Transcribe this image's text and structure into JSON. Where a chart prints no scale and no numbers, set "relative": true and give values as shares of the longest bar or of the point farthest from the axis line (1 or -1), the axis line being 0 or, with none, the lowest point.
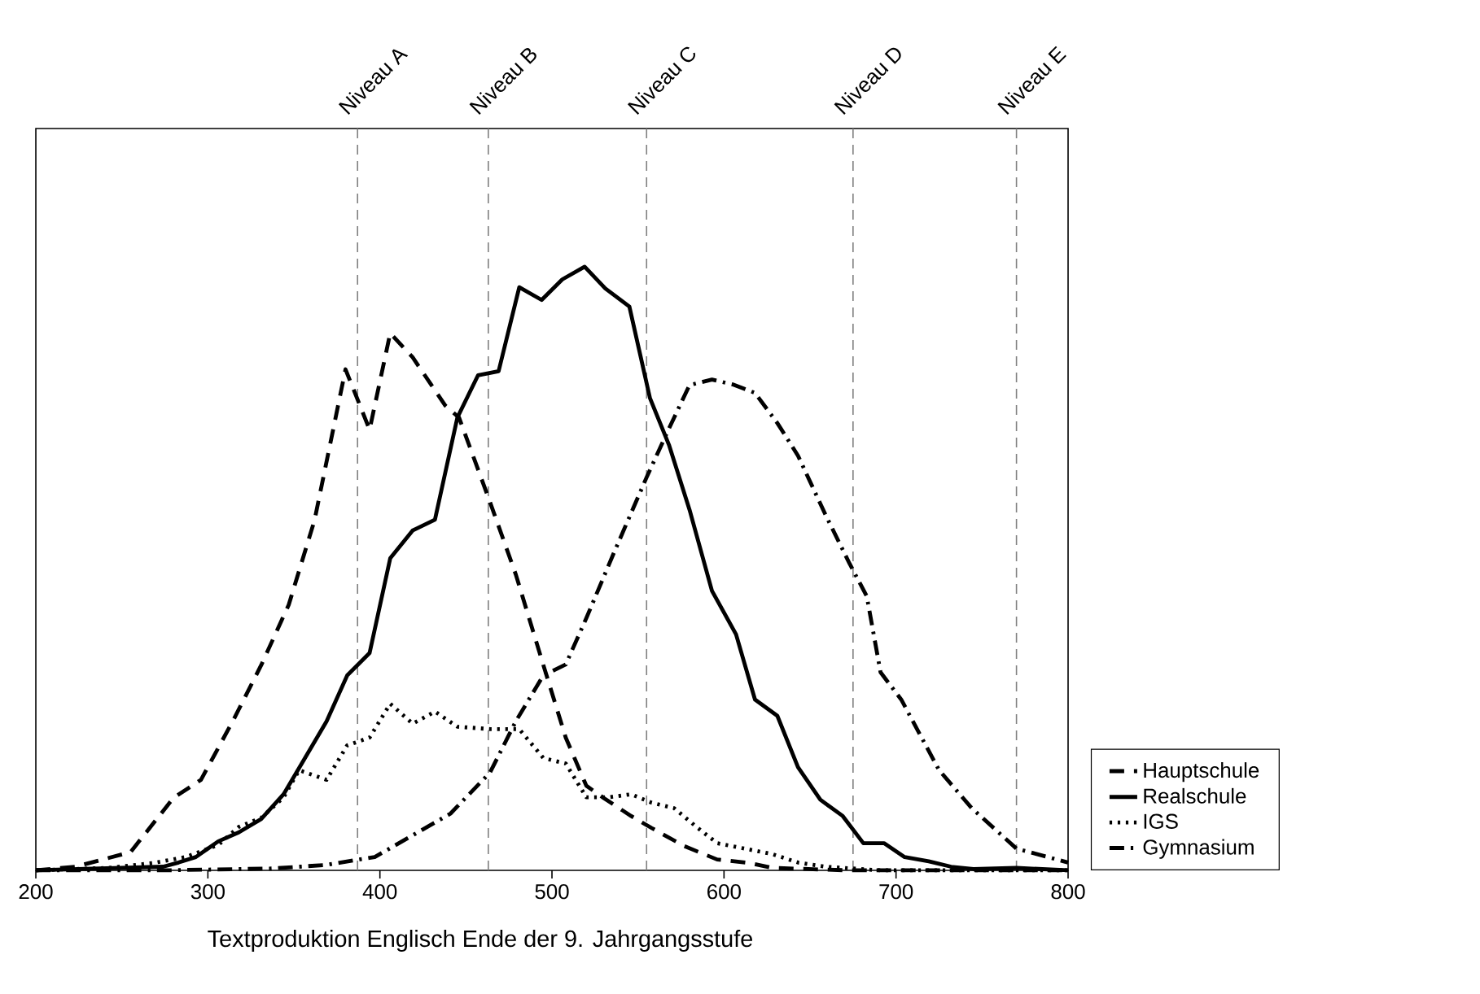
{
  "chart_data": {
    "type": "line",
    "relative": true,
    "xlabel": "Textproduktion Englisch Ende der 9. Jahrgangsstufe",
    "xlim": [
      200,
      800
    ],
    "xticks": [
      200,
      300,
      400,
      500,
      600,
      700,
      800
    ],
    "tick_labels": "x",
    "legend": "right",
    "grid": false,
    "ref_lines": [
      {
        "axis": "x",
        "value": 387,
        "label": "Niveau A",
        "color": "#808080",
        "line_style": "dashed"
      },
      {
        "axis": "x",
        "value": 463,
        "label": "Niveau B",
        "color": "#808080",
        "line_style": "dashed"
      },
      {
        "axis": "x",
        "value": 555,
        "label": "Niveau C",
        "color": "#808080",
        "line_style": "dashed"
      },
      {
        "axis": "x",
        "value": 675,
        "label": "Niveau D",
        "color": "#808080",
        "line_style": "dashed"
      },
      {
        "axis": "x",
        "value": 770,
        "label": "Niveau E",
        "color": "#808080",
        "line_style": "dashed"
      }
    ],
    "series": [
      {
        "name": "Hauptschule",
        "color": "#000000",
        "line_style": "dashed",
        "x": [
          200,
          223,
          255,
          280,
          296,
          315,
          331,
          347,
          362,
          380,
          394,
          406,
          419,
          438,
          446,
          464,
          479,
          495,
          508,
          520,
          530,
          546,
          558,
          577,
          596,
          615,
          628,
          672,
          800
        ],
        "values": [
          0,
          0.006,
          0.03,
          0.12,
          0.15,
          0.25,
          0.34,
          0.44,
          0.58,
          0.83,
          0.73,
          0.89,
          0.85,
          0.77,
          0.75,
          0.61,
          0.49,
          0.34,
          0.22,
          0.14,
          0.12,
          0.09,
          0.07,
          0.04,
          0.018,
          0.012,
          0.004,
          0,
          0
        ]
      },
      {
        "name": "Realschule",
        "color": "#000000",
        "line_style": "solid",
        "x": [
          200,
          274,
          283,
          293,
          306,
          318,
          331,
          344,
          356,
          369,
          381,
          394,
          406,
          419,
          432,
          445,
          457,
          469,
          481,
          494,
          506,
          519,
          531,
          545,
          557,
          568,
          580,
          593,
          607,
          618,
          631,
          643,
          656,
          669,
          681,
          693,
          705,
          719,
          732,
          745,
          770,
          800
        ],
        "values": [
          0,
          0.006,
          0.013,
          0.022,
          0.048,
          0.063,
          0.085,
          0.126,
          0.184,
          0.247,
          0.323,
          0.36,
          0.517,
          0.563,
          0.581,
          0.75,
          0.82,
          0.827,
          0.966,
          0.945,
          0.979,
          1,
          0.964,
          0.934,
          0.782,
          0.705,
          0.597,
          0.463,
          0.391,
          0.283,
          0.256,
          0.171,
          0.117,
          0.09,
          0.045,
          0.045,
          0.022,
          0.015,
          0.006,
          0.002,
          0.004,
          0
        ]
      },
      {
        "name": "IGS",
        "color": "#000000",
        "line_style": "dotted",
        "x": [
          200,
          242,
          268,
          287,
          306,
          318,
          331,
          344,
          353,
          369,
          381,
          394,
          406,
          419,
          432,
          445,
          464,
          481,
          495,
          508,
          520,
          533,
          546,
          558,
          571,
          584,
          596,
          612,
          628,
          643,
          659,
          675,
          691,
          800
        ],
        "values": [
          0,
          0.004,
          0.012,
          0.022,
          0.042,
          0.072,
          0.087,
          0.121,
          0.166,
          0.15,
          0.207,
          0.22,
          0.276,
          0.243,
          0.263,
          0.238,
          0.234,
          0.234,
          0.186,
          0.177,
          0.121,
          0.121,
          0.126,
          0.112,
          0.103,
          0.072,
          0.045,
          0.036,
          0.027,
          0.013,
          0.006,
          0.003,
          0,
          0
        ]
      },
      {
        "name": "Gymnasium",
        "color": "#000000",
        "line_style": "dashdot",
        "x": [
          200,
          274,
          337,
          369,
          388,
          397,
          419,
          441,
          464,
          479,
          495,
          508,
          520,
          536,
          555,
          568,
          580,
          593,
          605,
          618,
          631,
          643,
          659,
          673,
          683,
          691,
          703,
          725,
          744,
          770,
          800
        ],
        "values": [
          0,
          0,
          0.003,
          0.009,
          0.018,
          0.022,
          0.058,
          0.094,
          0.162,
          0.247,
          0.323,
          0.341,
          0.418,
          0.526,
          0.651,
          0.732,
          0.804,
          0.813,
          0.805,
          0.791,
          0.741,
          0.687,
          0.589,
          0.508,
          0.454,
          0.328,
          0.283,
          0.166,
          0.103,
          0.036,
          0.013
        ]
      }
    ]
  }
}
